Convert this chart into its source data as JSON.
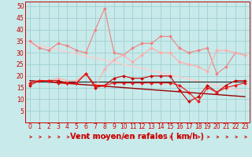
{
  "x": [
    0,
    1,
    2,
    3,
    4,
    5,
    6,
    7,
    8,
    9,
    10,
    11,
    12,
    13,
    14,
    15,
    16,
    17,
    18,
    19,
    20,
    21,
    22,
    23
  ],
  "series": [
    {
      "name": "rafales_light",
      "color": "#f08080",
      "linewidth": 0.8,
      "marker": "D",
      "markersize": 2.0,
      "values": [
        35,
        32,
        31,
        34,
        33,
        31,
        30,
        40,
        49,
        30,
        29,
        32,
        34,
        34,
        37,
        37,
        32,
        30,
        31,
        32,
        21,
        24,
        30,
        29
      ]
    },
    {
      "name": "moyen_light",
      "color": "#ffaaaa",
      "linewidth": 0.8,
      "marker": "D",
      "markersize": 2.0,
      "values": [
        17,
        18,
        18,
        19,
        18,
        18,
        21,
        15,
        23,
        27,
        29,
        26,
        29,
        32,
        30,
        30,
        26,
        25,
        24,
        22,
        31,
        31,
        30,
        29
      ]
    },
    {
      "name": "trend_rafales",
      "color": "#ffcccc",
      "linewidth": 1.0,
      "marker": null,
      "markersize": 0,
      "values": [
        34.0,
        33.1,
        32.2,
        31.3,
        30.4,
        29.5,
        28.6,
        27.7,
        26.8,
        25.9,
        25.0,
        24.1,
        23.2,
        22.3,
        21.4,
        20.5,
        19.6,
        18.7,
        17.8,
        16.9,
        16.0,
        15.1,
        14.2,
        13.3
      ]
    },
    {
      "name": "vent_moyen_dark",
      "color": "#cc0000",
      "linewidth": 0.8,
      "marker": "D",
      "markersize": 2.0,
      "values": [
        16,
        18,
        18,
        18,
        17,
        17,
        21,
        15,
        16,
        19,
        20,
        19,
        19,
        20,
        20,
        20,
        14,
        9,
        11,
        16,
        13,
        16,
        18,
        18
      ]
    },
    {
      "name": "vent_rafales_dark",
      "color": "#ee1111",
      "linewidth": 0.8,
      "marker": "D",
      "markersize": 2.0,
      "values": [
        17,
        18,
        18,
        17,
        17,
        17,
        21,
        16,
        16,
        17,
        17,
        17,
        17,
        17,
        17,
        17,
        16,
        13,
        9,
        15,
        13,
        15,
        16,
        17
      ]
    },
    {
      "name": "trend_moyen_slope",
      "color": "#990000",
      "linewidth": 1.0,
      "marker": null,
      "markersize": 0,
      "values": [
        18.0,
        17.7,
        17.4,
        17.1,
        16.8,
        16.5,
        16.2,
        15.9,
        15.6,
        15.3,
        15.0,
        14.7,
        14.4,
        14.1,
        13.8,
        13.5,
        13.2,
        12.9,
        12.6,
        12.3,
        12.0,
        11.7,
        11.4,
        11.1
      ]
    },
    {
      "name": "trend_flat",
      "color": "#222222",
      "linewidth": 0.8,
      "marker": null,
      "markersize": 0,
      "values": [
        17.5,
        17.5,
        17.5,
        17.5,
        17.5,
        17.5,
        17.5,
        17.5,
        17.5,
        17.5,
        17.5,
        17.5,
        17.5,
        17.5,
        17.5,
        17.5,
        17.5,
        17.5,
        17.5,
        17.5,
        17.5,
        17.5,
        17.5,
        17.5
      ]
    }
  ],
  "xlabel": "Vent moyen/en rafales ( km/h )",
  "xlim": [
    -0.5,
    23.5
  ],
  "ylim": [
    0,
    52
  ],
  "yticks": [
    5,
    10,
    15,
    20,
    25,
    30,
    35,
    40,
    45,
    50
  ],
  "xticks": [
    0,
    1,
    2,
    3,
    4,
    5,
    6,
    7,
    8,
    9,
    10,
    11,
    12,
    13,
    14,
    15,
    16,
    17,
    18,
    19,
    20,
    21,
    22,
    23
  ],
  "background_color": "#c8eaea",
  "grid_color": "#a0d0d0",
  "xlabel_color": "#cc0000",
  "tick_color": "#cc0000",
  "xlabel_fontsize": 7,
  "tick_fontsize": 5.5,
  "arrow_color": "#cc0000"
}
